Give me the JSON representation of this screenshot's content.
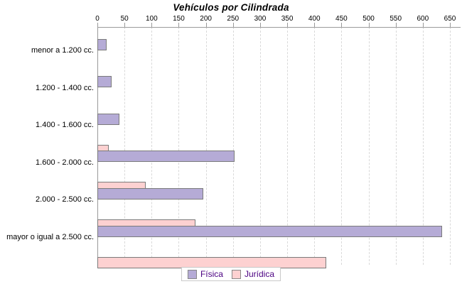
{
  "title": "Vehículos por Cilindrada",
  "chart_data": {
    "type": "bar",
    "orientation": "horizontal",
    "title": "Vehículos por Cilindrada",
    "categories": [
      "menor a 1.200 cc.",
      "1.200 - 1.400 cc.",
      "1.400 - 1.600 cc.",
      "1.600 - 2.000 cc.",
      "2.000 - 2.500 cc.",
      "mayor o igual a 2.500 cc."
    ],
    "series": [
      {
        "name": "Física",
        "color": "#b5abd6",
        "values": [
          14,
          24,
          38,
          250,
          193,
          633
        ]
      },
      {
        "name": "Jurídica",
        "color": "#fdd1d1",
        "values": [
          0,
          0,
          18,
          87,
          178,
          420
        ]
      }
    ],
    "xlim": [
      0,
      650
    ],
    "x_ticks": [
      0,
      50,
      100,
      150,
      200,
      250,
      300,
      350,
      400,
      450,
      500,
      550,
      600,
      650
    ],
    "xlabel": "",
    "ylabel": "",
    "grid": "vertical dashed gridlines",
    "value_axis_position": "top",
    "legend_position": "bottom"
  },
  "legend": {
    "items": [
      "Física",
      "Jurídica"
    ]
  },
  "colors": {
    "series_fisica": "#b5abd6",
    "series_juridica": "#fdd1d1",
    "bar_border": "#7b7b7b",
    "gridline": "#d9d9d9",
    "axis_line": "#9a9a9a",
    "legend_text": "#4b0082",
    "legend_border": "#c9c9c9",
    "text": "#000000",
    "background": "#ffffff"
  }
}
